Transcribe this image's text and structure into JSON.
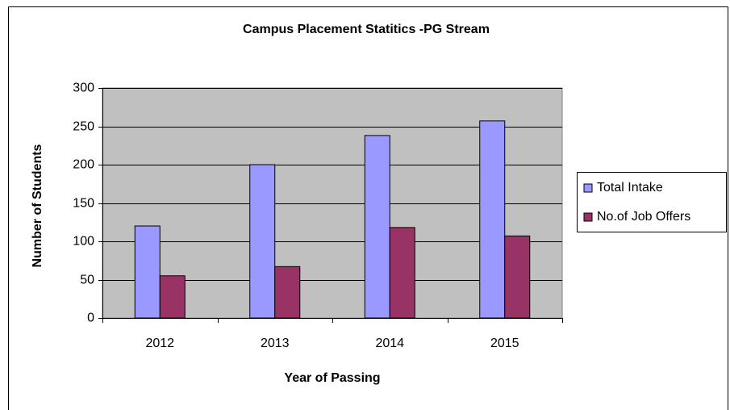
{
  "chart_data": {
    "type": "bar",
    "title": "Campus Placement Statitics -PG Stream",
    "x_label": "Year of Passing",
    "y_label": "Number of Students",
    "categories": [
      "2012",
      "2013",
      "2014",
      "2015"
    ],
    "series": [
      {
        "name": "Total Intake",
        "color": "#9999ff",
        "values": [
          120,
          200,
          238,
          257
        ]
      },
      {
        "name": "No.of Job Offers",
        "color": "#993366",
        "values": [
          55,
          67,
          118,
          107
        ]
      }
    ],
    "ylim": [
      0,
      300
    ],
    "yticks": [
      0,
      50,
      100,
      150,
      200,
      250,
      300
    ],
    "grid": true,
    "legend": "right",
    "plot_background": "#c0c0c0"
  }
}
